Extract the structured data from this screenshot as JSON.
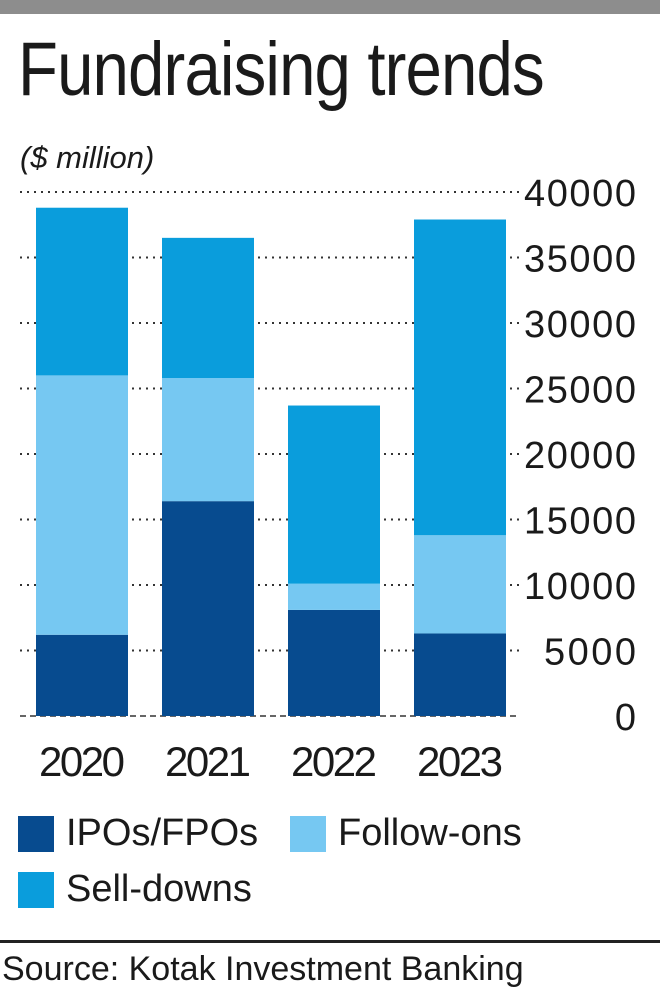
{
  "title": "Fundraising trends",
  "unit_label": "($ million)",
  "source": "Source: Kotak Investment Banking",
  "colors": {
    "ipos_fpos": "#074b8f",
    "follow_ons": "#76c8f2",
    "sell_downs": "#0a9ddc",
    "grid": "#333333",
    "topbar": "#8d8d8d"
  },
  "legend": [
    {
      "label": "IPOs/FPOs",
      "color": "#074b8f"
    },
    {
      "label": "Follow-ons",
      "color": "#76c8f2"
    },
    {
      "label": "Sell-downs",
      "color": "#0a9ddc"
    }
  ],
  "chart_data": {
    "type": "bar",
    "stacked": true,
    "categories": [
      "2020",
      "2021",
      "2022",
      "2023"
    ],
    "series": [
      {
        "name": "IPOs/FPOs",
        "values": [
          6200,
          16400,
          8100,
          6300
        ]
      },
      {
        "name": "Follow-ons",
        "values": [
          19800,
          9400,
          2000,
          7500
        ]
      },
      {
        "name": "Sell-downs",
        "values": [
          12800,
          10700,
          13600,
          24100
        ]
      }
    ],
    "ylim": [
      0,
      40000
    ],
    "yticks": [
      "40000",
      "35000",
      "30000",
      "25000",
      "20000",
      "15000",
      "10000",
      "5000",
      "0"
    ],
    "ytick_values": [
      40000,
      35000,
      30000,
      25000,
      20000,
      15000,
      10000,
      5000,
      0
    ],
    "grid": "dotted",
    "yaxis_position": "right",
    "legend_position": "bottom"
  }
}
